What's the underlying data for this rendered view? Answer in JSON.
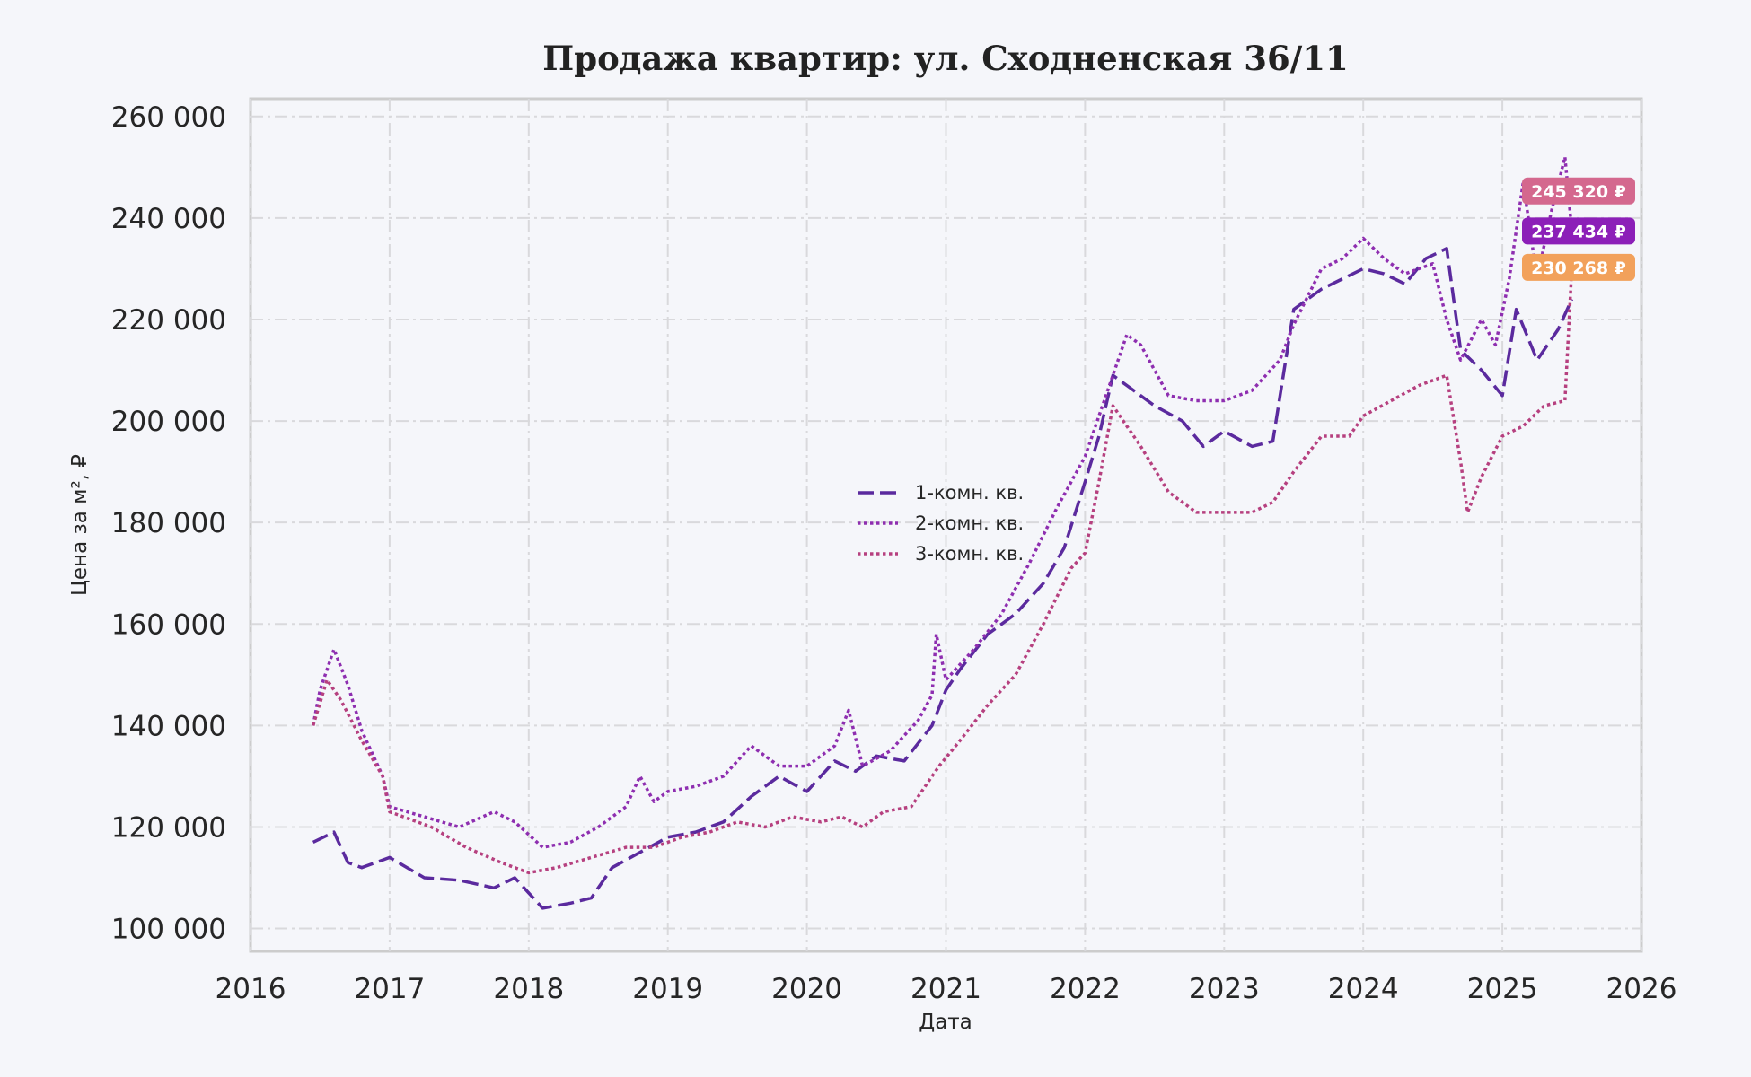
{
  "chart_data": {
    "type": "line",
    "title": "Продажа квартир: ул. Сходненская 36/11",
    "xlabel": "Дата",
    "ylabel": "Цена за м², ₽",
    "xlim": [
      2016.0,
      2026.0
    ],
    "ylim": [
      95500,
      263500
    ],
    "x_ticks": [
      "2016",
      "2017",
      "2018",
      "2019",
      "2020",
      "2021",
      "2022",
      "2023",
      "2024",
      "2025",
      "2026"
    ],
    "y_ticks": [
      {
        "value": 100000,
        "label": "100 000"
      },
      {
        "value": 120000,
        "label": "120 000"
      },
      {
        "value": 140000,
        "label": "140 000"
      },
      {
        "value": 160000,
        "label": "160 000"
      },
      {
        "value": 180000,
        "label": "180 000"
      },
      {
        "value": 200000,
        "label": "200 000"
      },
      {
        "value": 220000,
        "label": "220 000"
      },
      {
        "value": 240000,
        "label": "240 000"
      },
      {
        "value": 260000,
        "label": "260 000"
      }
    ],
    "grid": true,
    "legend_position": "center",
    "series": [
      {
        "name": "1-комн. кв.",
        "style": "dashed",
        "color": "#5b2a9e",
        "x": [
          2016.45,
          2016.6,
          2016.7,
          2016.8,
          2017.0,
          2017.25,
          2017.5,
          2017.75,
          2017.9,
          2018.1,
          2018.3,
          2018.45,
          2018.6,
          2018.8,
          2019.0,
          2019.2,
          2019.4,
          2019.6,
          2019.8,
          2020.0,
          2020.2,
          2020.35,
          2020.5,
          2020.7,
          2020.9,
          2021.0,
          2021.1,
          2021.3,
          2021.5,
          2021.7,
          2021.85,
          2022.0,
          2022.1,
          2022.2,
          2022.3,
          2022.5,
          2022.7,
          2022.85,
          2023.0,
          2023.2,
          2023.35,
          2023.5,
          2023.7,
          2023.85,
          2024.0,
          2024.15,
          2024.3,
          2024.45,
          2024.6,
          2024.7,
          2024.85,
          2025.0,
          2025.1,
          2025.25,
          2025.4,
          2025.5
        ],
        "y": [
          117000,
          119000,
          113000,
          112000,
          114000,
          110000,
          109500,
          108000,
          110000,
          104000,
          105000,
          106000,
          112000,
          115000,
          118000,
          119000,
          121000,
          126000,
          130000,
          127000,
          133000,
          131000,
          134000,
          133000,
          140000,
          147000,
          151000,
          158000,
          162000,
          168000,
          175000,
          188000,
          197000,
          209000,
          207000,
          203000,
          200000,
          195000,
          198000,
          195000,
          196000,
          222000,
          226000,
          228000,
          230000,
          229000,
          227000,
          232000,
          234000,
          214000,
          210000,
          205000,
          222000,
          212000,
          218000,
          224000
        ]
      },
      {
        "name": "2-комн. кв.",
        "style": "dotted",
        "color": "#8e2eb0",
        "x": [
          2016.45,
          2016.5,
          2016.6,
          2016.7,
          2016.8,
          2016.95,
          2017.0,
          2017.25,
          2017.5,
          2017.75,
          2017.9,
          2018.1,
          2018.3,
          2018.5,
          2018.7,
          2018.8,
          2018.9,
          2019.0,
          2019.2,
          2019.4,
          2019.6,
          2019.8,
          2020.0,
          2020.2,
          2020.3,
          2020.4,
          2020.6,
          2020.8,
          2020.9,
          2020.93,
          2021.0,
          2021.2,
          2021.4,
          2021.6,
          2021.8,
          2022.0,
          2022.2,
          2022.3,
          2022.4,
          2022.6,
          2022.8,
          2023.0,
          2023.2,
          2023.4,
          2023.5,
          2023.7,
          2023.85,
          2024.0,
          2024.15,
          2024.3,
          2024.5,
          2024.6,
          2024.7,
          2024.85,
          2024.95,
          2025.05,
          2025.15,
          2025.25,
          2025.35,
          2025.45,
          2025.5
        ],
        "y": [
          140000,
          147000,
          155000,
          148000,
          139000,
          130000,
          124000,
          122000,
          120000,
          123000,
          121000,
          116000,
          117000,
          120000,
          124000,
          130000,
          125000,
          127000,
          128000,
          130000,
          136000,
          132000,
          132000,
          136000,
          143000,
          132000,
          135000,
          141000,
          146000,
          158000,
          149000,
          155000,
          162000,
          172000,
          183000,
          193000,
          209000,
          217000,
          215000,
          205000,
          204000,
          204000,
          206000,
          212000,
          219000,
          230000,
          232000,
          236000,
          232000,
          229000,
          231000,
          220000,
          212000,
          220000,
          215000,
          228000,
          247000,
          228000,
          241000,
          252000,
          237434
        ]
      },
      {
        "name": "3-комн. кв.",
        "style": "dotted",
        "color": "#b6407f",
        "x": [
          2016.45,
          2016.55,
          2016.65,
          2016.8,
          2016.95,
          2017.0,
          2017.3,
          2017.55,
          2017.8,
          2018.0,
          2018.2,
          2018.45,
          2018.7,
          2018.9,
          2019.1,
          2019.3,
          2019.5,
          2019.7,
          2019.9,
          2020.1,
          2020.25,
          2020.4,
          2020.55,
          2020.75,
          2020.95,
          2021.1,
          2021.3,
          2021.5,
          2021.7,
          2021.9,
          2022.0,
          2022.1,
          2022.2,
          2022.4,
          2022.6,
          2022.8,
          2023.0,
          2023.2,
          2023.35,
          2023.5,
          2023.7,
          2023.9,
          2024.0,
          2024.2,
          2024.4,
          2024.6,
          2024.7,
          2024.75,
          2024.85,
          2025.0,
          2025.15,
          2025.3,
          2025.45,
          2025.5
        ],
        "y": [
          140000,
          149000,
          145000,
          137000,
          130000,
          123000,
          120000,
          116000,
          113000,
          111000,
          112000,
          114000,
          116000,
          116000,
          118000,
          119000,
          121000,
          120000,
          122000,
          121000,
          122000,
          120000,
          123000,
          124000,
          132000,
          137000,
          144000,
          150000,
          160000,
          171000,
          174000,
          188000,
          203000,
          195000,
          186000,
          182000,
          182000,
          182000,
          184000,
          190000,
          197000,
          197000,
          201000,
          204000,
          207000,
          209000,
          192000,
          182000,
          189000,
          197000,
          199000,
          203000,
          204000,
          230268
        ]
      }
    ],
    "last_value_badges": [
      {
        "text": "245 320 ₽",
        "color": "#d4688e",
        "value": 245320
      },
      {
        "text": "237 434 ₽",
        "color": "#8c1fb8",
        "value": 237434
      },
      {
        "text": "230 268 ₽",
        "color": "#f2a15b",
        "value": 230268
      }
    ]
  }
}
